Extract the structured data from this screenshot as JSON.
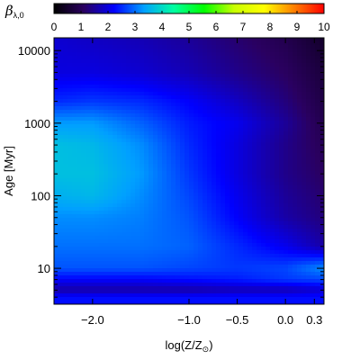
{
  "chart_data": {
    "type": "heatmap",
    "xlabel": "log(Z/Z",
    "xlabel_sub": "⊙",
    "xlabel_close": ")",
    "ylabel": "Age [Myr]",
    "colorbar": {
      "label_symbol": "β",
      "label_sub": "λ,0",
      "range": [
        0,
        10
      ],
      "ticks": [
        "0",
        "1",
        "2",
        "3",
        "4",
        "5",
        "6",
        "7",
        "8",
        "9",
        "10"
      ],
      "colormap": [
        "#000000",
        "#2a0060",
        "#0000ff",
        "#00a0ff",
        "#00ffa0",
        "#00ff00",
        "#c8ff00",
        "#ffff00",
        "#ff8000",
        "#ff0000"
      ]
    },
    "x_ticks": [
      {
        "value": -2.0,
        "label": "−2.0"
      },
      {
        "value": -1.0,
        "label": "−1.0"
      },
      {
        "value": -0.5,
        "label": "−0.5"
      },
      {
        "value": 0.0,
        "label": "0.0"
      },
      {
        "value": 0.3,
        "label": "0.3"
      }
    ],
    "xlim": [
      -2.4,
      0.4
    ],
    "y_scale": "log",
    "y_ticks": [
      {
        "value": 10,
        "label": "10"
      },
      {
        "value": 100,
        "label": "100"
      },
      {
        "value": 1000,
        "label": "1000"
      },
      {
        "value": 10000,
        "label": "10000"
      }
    ],
    "ylim": [
      3.2,
      15000
    ],
    "x_grid": [
      -2.4,
      -2.0,
      -1.5,
      -1.0,
      -0.5,
      0.0,
      0.4
    ],
    "y_grid": [
      4,
      5,
      7,
      10,
      20,
      50,
      100,
      200,
      500,
      1000,
      2000,
      5000,
      15000
    ],
    "z": [
      [
        2.3,
        2.3,
        2.3,
        2.3,
        2.3,
        2.3,
        2.3
      ],
      [
        1.6,
        1.6,
        1.6,
        1.6,
        1.7,
        1.7,
        1.9
      ],
      [
        2.2,
        2.2,
        2.2,
        2.3,
        2.4,
        2.6,
        2.7
      ],
      [
        2.8,
        2.8,
        2.8,
        2.7,
        2.6,
        2.7,
        3.2
      ],
      [
        3.0,
        3.0,
        3.0,
        2.9,
        2.5,
        2.1,
        1.6
      ],
      [
        3.2,
        3.2,
        3.1,
        2.8,
        2.2,
        1.6,
        1.3
      ],
      [
        3.5,
        3.6,
        3.2,
        2.7,
        2.1,
        1.5,
        1.2
      ],
      [
        3.7,
        3.7,
        3.3,
        2.6,
        2.0,
        1.4,
        1.1
      ],
      [
        3.7,
        3.6,
        3.2,
        2.5,
        2.0,
        1.4,
        1.0
      ],
      [
        3.3,
        3.3,
        2.9,
        2.4,
        2.1,
        1.5,
        0.9
      ],
      [
        2.5,
        2.6,
        2.5,
        2.2,
        1.8,
        1.3,
        0.8
      ],
      [
        2.0,
        2.0,
        1.9,
        1.7,
        1.4,
        1.1,
        0.7
      ],
      [
        1.9,
        1.8,
        1.7,
        1.5,
        1.2,
        0.9,
        0.5
      ]
    ]
  }
}
